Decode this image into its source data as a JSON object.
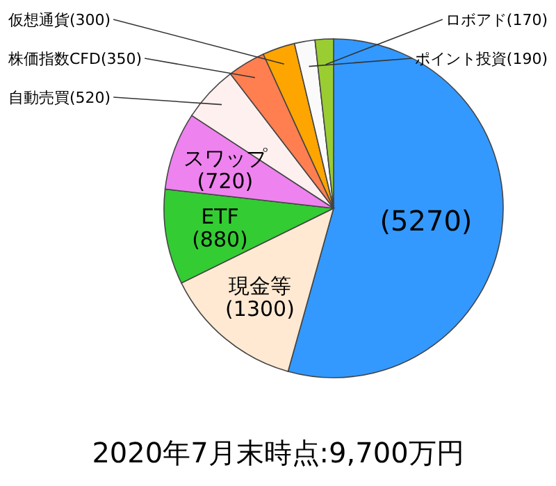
{
  "chart_data": {
    "type": "pie",
    "title": "2020年7月末時点:9,700万円",
    "categories": [
      null,
      "現金等",
      "ETF",
      "スワップ",
      "自動売買",
      "株価指数CFD",
      "仮想通貨",
      "ポイント投資",
      "ロボアド"
    ],
    "values": [
      5270,
      1300,
      880,
      720,
      520,
      350,
      300,
      190,
      170
    ],
    "value_labels": [
      "(5270)",
      "(1300)",
      "(880)",
      "(720)",
      "(520)",
      "(350)",
      "(300)",
      "(190)",
      "(170)"
    ],
    "colors": [
      "#3399ff",
      "#ffe9d2",
      "#33cc33",
      "#ee82ee",
      "#fff0f0",
      "#ff7f50",
      "#ffa500",
      "#fafafa",
      "#9acd32"
    ]
  }
}
